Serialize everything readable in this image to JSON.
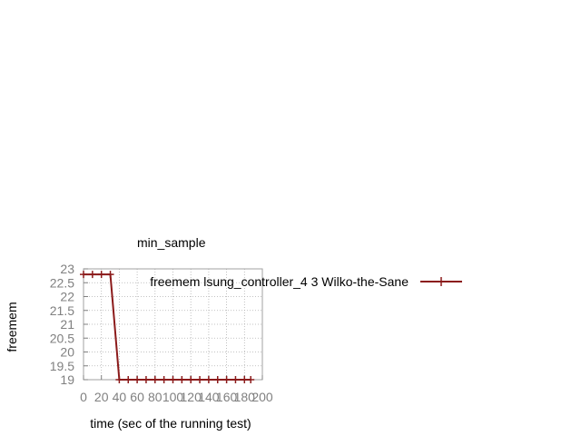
{
  "chart_data": {
    "type": "line",
    "title": "min_sample",
    "xlabel": "time (sec of the running test)",
    "ylabel": "freemem",
    "xlim": [
      0,
      200
    ],
    "ylim": [
      19,
      23
    ],
    "x_ticks": [
      0,
      20,
      40,
      60,
      80,
      100,
      120,
      140,
      160,
      180,
      200
    ],
    "x_tick_labels": [
      "0",
      "20",
      "40",
      "60",
      "80",
      "100",
      "120",
      "140",
      "160",
      "180",
      "200"
    ],
    "y_ticks": [
      19,
      19.5,
      20,
      20.5,
      21,
      21.5,
      22,
      22.5,
      23
    ],
    "y_tick_labels": [
      "19",
      "19.5",
      "20",
      "20.5",
      "21",
      "21.5",
      "22",
      "22.5",
      "23"
    ],
    "grid": true,
    "legend_position": "top-right",
    "series": [
      {
        "name": "freemem lsung_controller_4 3 Wilko-the-Sane",
        "color": "#8b1a1a",
        "x": [
          0,
          10,
          20,
          30,
          40,
          50,
          60,
          70,
          80,
          90,
          100,
          110,
          120,
          130,
          140,
          150,
          160,
          170,
          180,
          187
        ],
        "y": [
          22.8,
          22.8,
          22.8,
          22.8,
          19.0,
          19.0,
          19.0,
          19.0,
          19.0,
          19.0,
          19.0,
          19.0,
          19.0,
          19.0,
          19.0,
          19.0,
          19.0,
          19.0,
          19.0,
          19.0
        ]
      }
    ]
  }
}
